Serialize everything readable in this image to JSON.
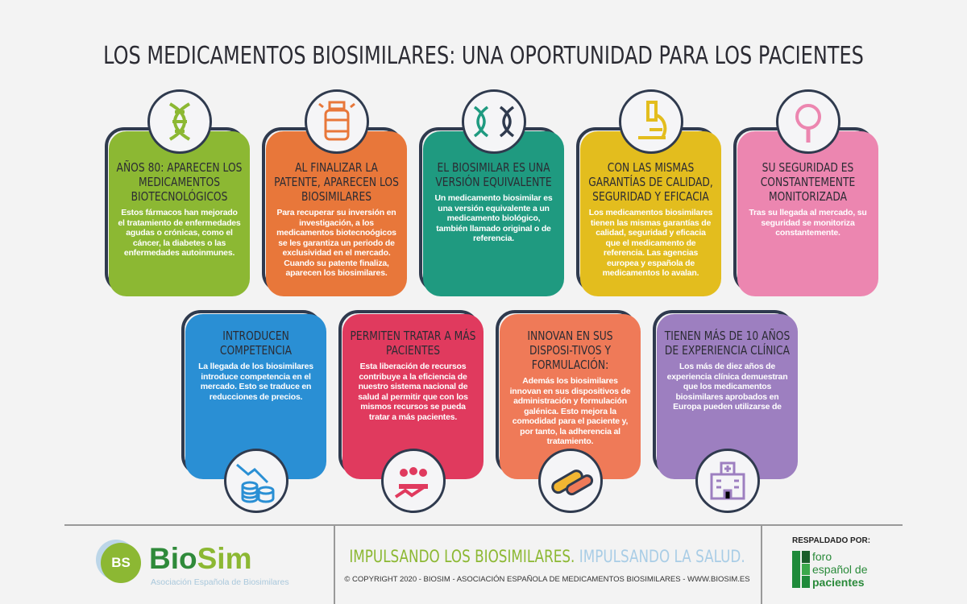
{
  "title": "LOS MEDICAMENTOS BIOSIMILARES: UNA OPORTUNIDAD PARA LOS PACIENTES",
  "cards": [
    {
      "heading": "Años 80: aparecen los medicamentos biotecnológicos",
      "text": "Estos fármacos han mejorado el tratamiento de enfermedades agudas o crónicas, como el cáncer, la diabetes o las enfermedades autoinmunes.",
      "color": "#8cb833",
      "icon": "dna-icon"
    },
    {
      "heading": "Al finalizar la patente, aparecen los biosimilares",
      "text": "Para recuperar su inversión en investigación, a los medicamentos biotecnoógicos se les garantiza un periodo de exclusividad en el mercado. Cuando su patente finaliza, aparecen los biosimilares.",
      "color": "#e8773a",
      "icon": "medicine-bottle-icon"
    },
    {
      "heading": "El biosimilar es una versión equivalente",
      "text": "Un medicamento biosimilar es una versión equivalente a un medicamento biológico, también llamado original o de referencia.",
      "color": "#1f9a80",
      "icon": "two-dna-icon"
    },
    {
      "heading": "Con las mismas garantías de calidad, seguridad y eficacia",
      "text": "Los medicamentos biosimilares tienen las mismas garantías de calidad, seguridad y eficacia que el medicamento de referencia. Las agencias europea y española de medicamentos lo avalan.",
      "color": "#e3bd1e",
      "icon": "microscope-icon"
    },
    {
      "heading": "Su seguridad es constantemente monitorizada",
      "text": "Tras su llegada al mercado, su seguridad se monitoriza constantemente.",
      "color": "#ec86b0",
      "icon": "magnifier-icon"
    },
    {
      "heading": "Introducen competencia",
      "text": "La llegada de los biosimilares introduce competencia en el mercado. Esto se traduce en reducciones de precios.",
      "color": "#2a8fd4",
      "icon": "coins-down-icon"
    },
    {
      "heading": "Permiten tratar a más pacientes",
      "text": "Esta liberación de recursos contribuye a la eficiencia de nuestro sistema nacional de salud al permitir que con los mismos  recursos se pueda tratar a más pacientes.",
      "color": "#e03a5e",
      "icon": "people-growth-icon"
    },
    {
      "heading": "Innovan en sus disposi-tivos y formulación:",
      "text": "Además los biosimilares innovan en sus dispositivos de administración y formulación galénica. Esto mejora la comodidad para el paciente y, por tanto, la adherencia al tratamiento.",
      "color": "#ef7a58",
      "icon": "pills-icon"
    },
    {
      "heading": "Tienen más de 10 años de experiencia clínica",
      "text": "Los más de diez años de experiencia clínica demuestran que los medicamentos biosimilares aprobados en Europa pueden utilizarse de",
      "color": "#9d7fc0",
      "icon": "hospital-icon"
    }
  ],
  "footer": {
    "logo_initials": "BS",
    "logo_bio": "Bio",
    "logo_sim": "Sim",
    "logo_sub": "Asociación Española de Biosimilares",
    "slogan_1": "IMPULSANDO LOS BIOSIMILARES.",
    "slogan_2": "IMPULSANDO LA SALUD.",
    "copyright": "© COPYRIGHT  2020 - BIOSIM - ASOCIACIÓN  ESPAÑOLA  DE  MEDICAMENTOS  BIOSIMILARES - WWW.BIOSIM.ES",
    "backed_by": "RESPALDADO POR:",
    "foro_lines": [
      "foro",
      "español de",
      "pacientes"
    ]
  }
}
